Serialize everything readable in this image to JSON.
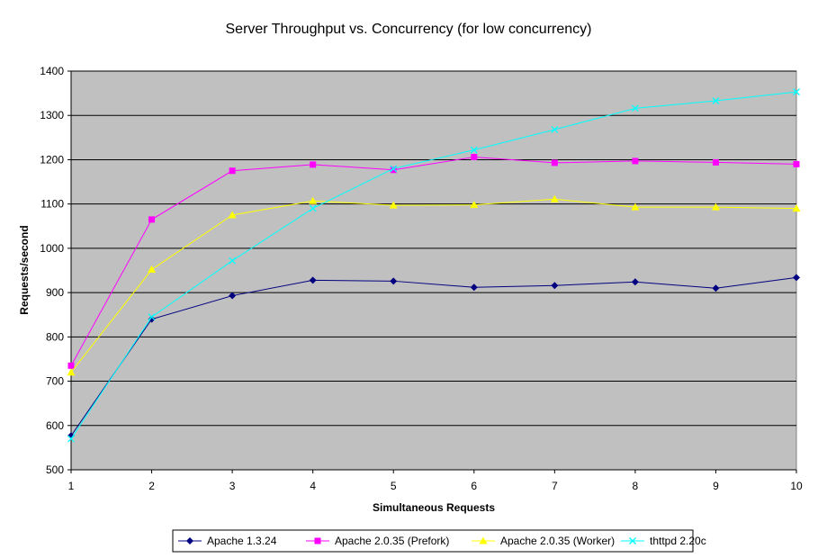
{
  "chart_data": {
    "type": "line",
    "title": "Server Throughput vs. Concurrency (for low concurrency)",
    "xlabel": "Simultaneous Requests",
    "ylabel": "Requests/second",
    "x": [
      1,
      2,
      3,
      4,
      5,
      6,
      7,
      8,
      9,
      10
    ],
    "ylim": [
      500,
      1400
    ],
    "yticks": [
      500,
      600,
      700,
      800,
      900,
      1000,
      1100,
      1200,
      1300,
      1400
    ],
    "grid": true,
    "legend_position": "bottom",
    "plot_background": "#c0c0c0",
    "series": [
      {
        "name": "Apache 1.3.24",
        "color": "#000080",
        "marker": "diamond",
        "values": [
          577,
          840,
          893,
          928,
          926,
          912,
          916,
          924,
          910,
          934
        ]
      },
      {
        "name": "Apache 2.0.35 (Prefork)",
        "color": "#ff00ff",
        "marker": "square",
        "values": [
          735,
          1065,
          1175,
          1189,
          1177,
          1206,
          1193,
          1197,
          1194,
          1190
        ]
      },
      {
        "name": "Apache 2.0.35 (Worker)",
        "color": "#ffff00",
        "marker": "triangle",
        "values": [
          720,
          952,
          1075,
          1107,
          1097,
          1098,
          1111,
          1093,
          1093,
          1090
        ]
      },
      {
        "name": "thttpd 2.20c",
        "color": "#00ffff",
        "marker": "x",
        "values": [
          570,
          845,
          972,
          1090,
          1180,
          1222,
          1268,
          1316,
          1333,
          1353
        ]
      }
    ]
  }
}
